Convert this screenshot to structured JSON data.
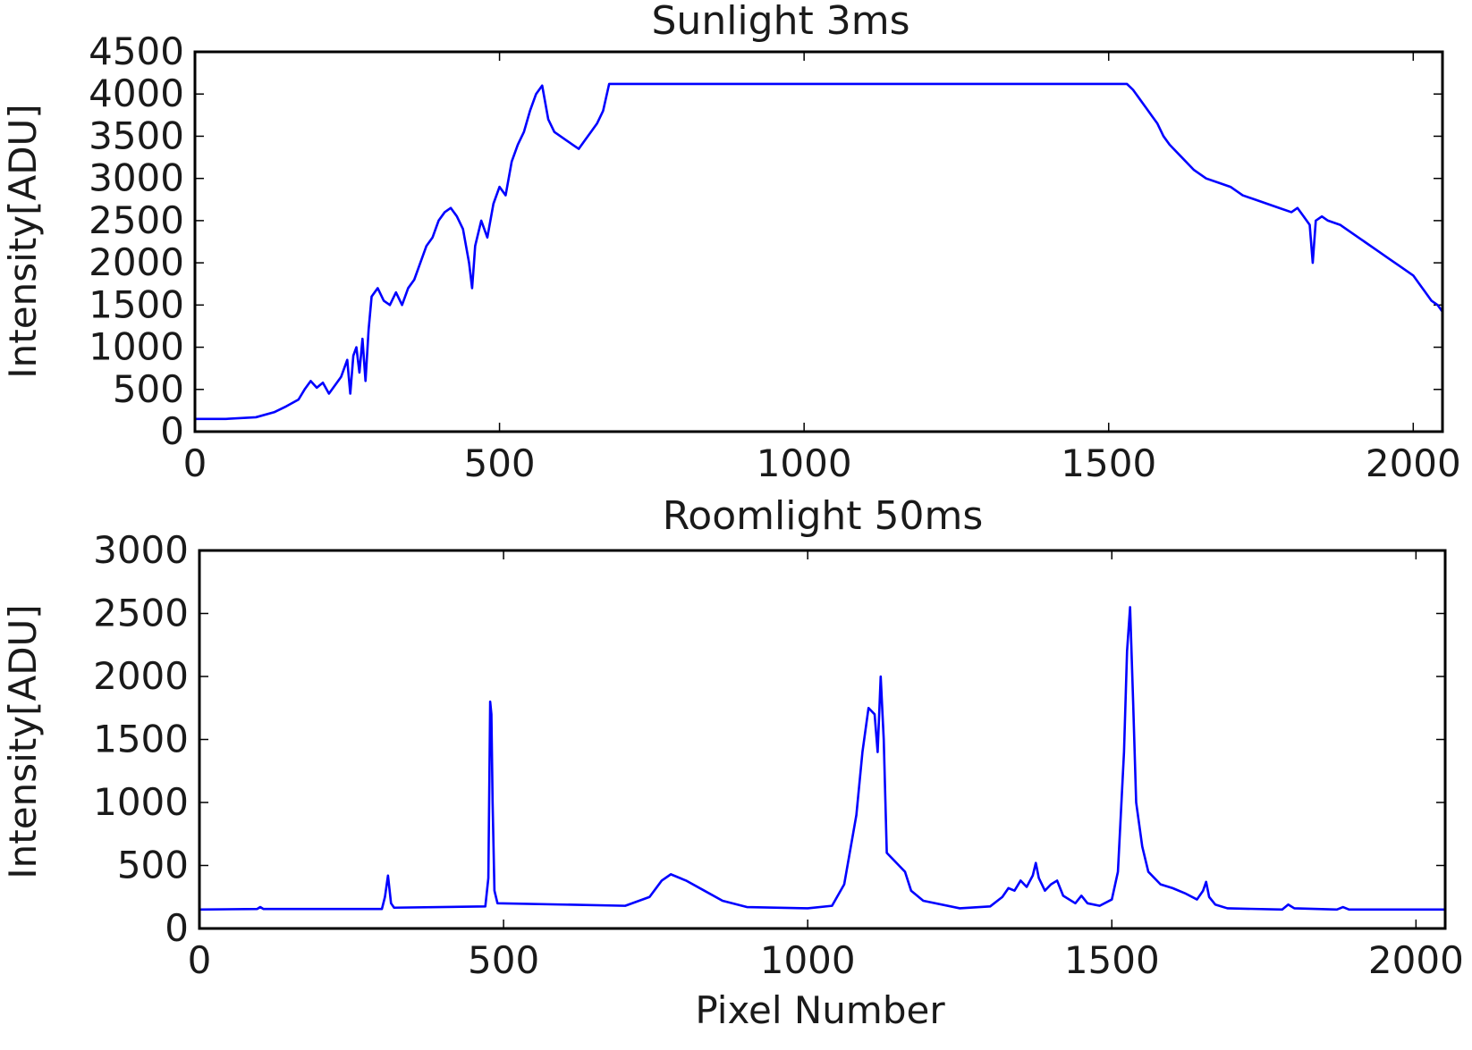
{
  "chart_data": [
    {
      "type": "line",
      "title": "Sunlight 3ms",
      "xlabel": "",
      "ylabel": "Intensity[ADU]",
      "xlim": [
        0,
        2048
      ],
      "ylim": [
        0,
        4500
      ],
      "xticks": [
        "0",
        "500",
        "1000",
        "1500",
        "2000"
      ],
      "yticks": [
        "0",
        "500",
        "1000",
        "1500",
        "2000",
        "2500",
        "3000",
        "3500",
        "4000",
        "4500"
      ],
      "grid": false,
      "color": "#0000ff",
      "series": [
        {
          "x": [
            0,
            50,
            100,
            130,
            150,
            170,
            180,
            190,
            200,
            210,
            220,
            240,
            250,
            255,
            260,
            265,
            270,
            275,
            280,
            285,
            290,
            300,
            310,
            320,
            330,
            340,
            350,
            360,
            370,
            380,
            390,
            400,
            410,
            420,
            430,
            440,
            450,
            455,
            460,
            470,
            480,
            490,
            500,
            510,
            520,
            530,
            540,
            550,
            560,
            570,
            580,
            590,
            600,
            610,
            620,
            630,
            640,
            650,
            660,
            670,
            680,
            700,
            800,
            900,
            1000,
            1100,
            1200,
            1300,
            1400,
            1500,
            1530,
            1540,
            1550,
            1560,
            1570,
            1580,
            1590,
            1600,
            1620,
            1640,
            1660,
            1680,
            1700,
            1720,
            1740,
            1760,
            1780,
            1800,
            1810,
            1820,
            1830,
            1835,
            1840,
            1850,
            1860,
            1880,
            1900,
            1920,
            1940,
            1960,
            1980,
            2000,
            2010,
            2020,
            2030,
            2040,
            2048
          ],
          "y": [
            150,
            150,
            170,
            230,
            300,
            380,
            500,
            600,
            520,
            580,
            450,
            650,
            850,
            450,
            900,
            1000,
            700,
            1100,
            600,
            1200,
            1600,
            1700,
            1550,
            1500,
            1650,
            1500,
            1700,
            1800,
            2000,
            2200,
            2300,
            2500,
            2600,
            2650,
            2550,
            2400,
            2000,
            1700,
            2200,
            2500,
            2300,
            2700,
            2900,
            2800,
            3200,
            3400,
            3550,
            3800,
            4000,
            4100,
            3700,
            3550,
            3500,
            3450,
            3400,
            3350,
            3450,
            3550,
            3650,
            3800,
            4120,
            4120,
            4120,
            4120,
            4120,
            4120,
            4120,
            4120,
            4120,
            4120,
            4120,
            4050,
            3950,
            3850,
            3750,
            3650,
            3500,
            3400,
            3250,
            3100,
            3000,
            2950,
            2900,
            2800,
            2750,
            2700,
            2650,
            2600,
            2650,
            2550,
            2450,
            2000,
            2500,
            2550,
            2500,
            2450,
            2350,
            2250,
            2150,
            2050,
            1950,
            1850,
            1750,
            1650,
            1550,
            1500,
            1420
          ]
        }
      ]
    },
    {
      "type": "line",
      "title": "Roomlight 50ms",
      "xlabel": "Pixel Number",
      "ylabel": "Intensity[ADU]",
      "xlim": [
        0,
        2048
      ],
      "ylim": [
        0,
        3000
      ],
      "xticks": [
        "0",
        "500",
        "1000",
        "1500",
        "2000"
      ],
      "yticks": [
        "0",
        "500",
        "1000",
        "1500",
        "2000",
        "2500",
        "3000"
      ],
      "grid": false,
      "color": "#0000ff",
      "series": [
        {
          "x": [
            0,
            95,
            100,
            105,
            300,
            305,
            310,
            315,
            320,
            470,
            475,
            478,
            480,
            482,
            485,
            490,
            700,
            740,
            760,
            775,
            800,
            830,
            860,
            900,
            1000,
            1040,
            1060,
            1080,
            1090,
            1100,
            1110,
            1115,
            1120,
            1125,
            1130,
            1140,
            1150,
            1160,
            1170,
            1190,
            1250,
            1300,
            1320,
            1330,
            1340,
            1350,
            1360,
            1370,
            1375,
            1380,
            1390,
            1400,
            1410,
            1420,
            1440,
            1450,
            1460,
            1480,
            1500,
            1510,
            1520,
            1525,
            1530,
            1535,
            1540,
            1550,
            1560,
            1580,
            1600,
            1620,
            1640,
            1650,
            1655,
            1660,
            1670,
            1690,
            1780,
            1790,
            1800,
            1870,
            1880,
            1890,
            2048
          ],
          "y": [
            150,
            155,
            170,
            155,
            155,
            250,
            420,
            200,
            165,
            175,
            400,
            1800,
            1700,
            1000,
            300,
            200,
            180,
            250,
            380,
            430,
            380,
            300,
            220,
            170,
            160,
            180,
            350,
            900,
            1400,
            1750,
            1700,
            1400,
            2000,
            1500,
            600,
            550,
            500,
            450,
            300,
            220,
            160,
            175,
            250,
            320,
            300,
            380,
            330,
            420,
            520,
            400,
            300,
            350,
            380,
            260,
            200,
            260,
            200,
            180,
            230,
            450,
            1400,
            2200,
            2550,
            1800,
            1000,
            650,
            450,
            350,
            320,
            280,
            230,
            300,
            370,
            250,
            190,
            160,
            150,
            190,
            160,
            150,
            170,
            150,
            150
          ]
        }
      ]
    }
  ]
}
